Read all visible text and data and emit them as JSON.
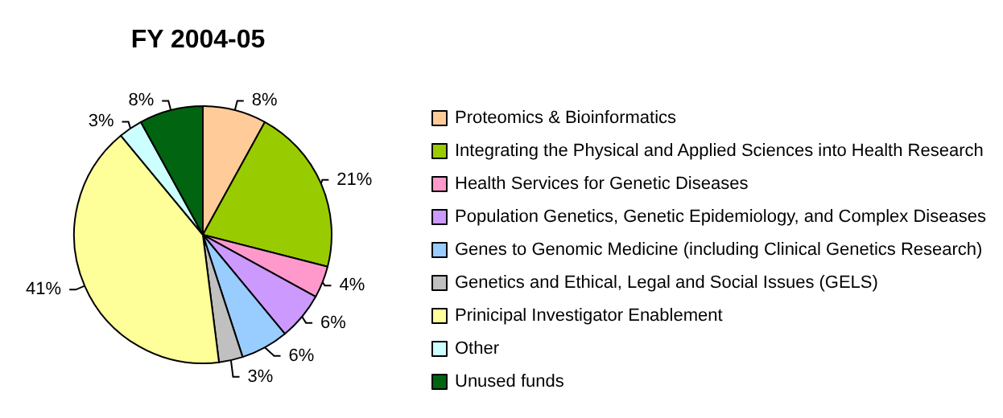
{
  "chart_data": {
    "type": "pie",
    "title": "FY 2004-05",
    "categories": [
      "Proteomics & Bioinformatics",
      "Integrating the Physical and Applied Sciences into Health Research",
      "Health Services for Genetic Diseases",
      "Population Genetics, Genetic Epidemiology, and Complex Diseases",
      "Genes to Genomic Medicine (including Clinical Genetics Research)",
      "Genetics and Ethical, Legal and Social Issues (GELS)",
      "Prinicipal Investigator Enablement",
      "Other",
      "Unused funds"
    ],
    "values": [
      8,
      21,
      4,
      6,
      6,
      3,
      41,
      3,
      8
    ],
    "value_labels": [
      "8%",
      "21%",
      "4%",
      "6%",
      "6%",
      "3%",
      "41%",
      "3%",
      "8%"
    ],
    "colors": [
      "#ffcc99",
      "#99cc00",
      "#ff99cc",
      "#cc99ff",
      "#99ccff",
      "#c0c0c0",
      "#ffff99",
      "#ccffff",
      "#006411"
    ],
    "legend": "right"
  }
}
